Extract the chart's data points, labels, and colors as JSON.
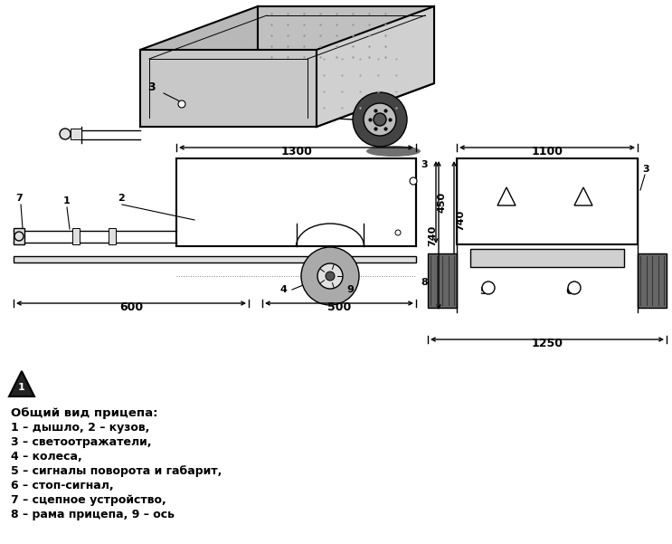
{
  "bg_color": "#ffffff",
  "text_color": "#000000",
  "legend_title": "Общий вид прицепа:",
  "legend_items": [
    "1 – дышло, 2 – кузов,",
    "3 – светоотражатели,",
    "4 – колеса,",
    "5 – сигналы поворота и габарит,",
    "6 – стоп-сигнал,",
    "7 – сцепное устройство,",
    "8 – рама прицепа, 9 – ось"
  ],
  "dim_1300": "1300",
  "dim_600": "600",
  "dim_500": "500",
  "dim_450": "450",
  "dim_740": "740",
  "dim_1100": "1100",
  "dim_1250": "1250"
}
